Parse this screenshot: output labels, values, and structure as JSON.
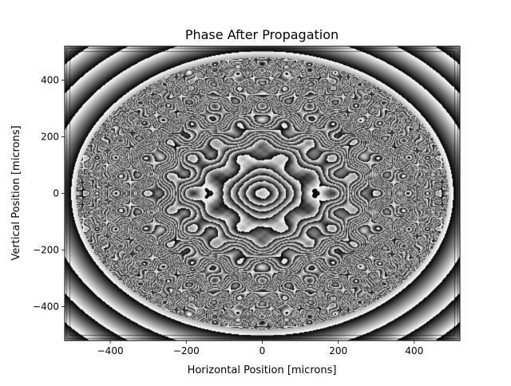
{
  "chart_data": {
    "type": "heatmap",
    "title": "Phase After Propagation",
    "xlabel": "Horizontal Position [microns]",
    "ylabel": "Vertical Position [microns]",
    "xlim": [
      -520,
      520
    ],
    "ylim": [
      -520,
      520
    ],
    "xticks": [
      -400,
      -200,
      0,
      200,
      400
    ],
    "xtick_labels": [
      "−400",
      "−200",
      "0",
      "200",
      "400"
    ],
    "yticks": [
      -400,
      -200,
      0,
      200,
      400
    ],
    "ytick_labels": [
      "−400",
      "−200",
      "0",
      "200",
      "400"
    ],
    "colormap": "gray",
    "value_range": "wrapped phase (-π to π)",
    "grid": false,
    "legend": "none",
    "features": {
      "aperture": {
        "shape": "ellipse",
        "center": [
          0,
          0
        ],
        "x_semi_axis": 490,
        "y_semi_axis": 480
      },
      "ring_centers": [
        {
          "x": 0,
          "y": 0,
          "strength": "strong"
        },
        {
          "x": 0,
          "y": 325,
          "strength": "strong"
        },
        {
          "x": 0,
          "y": -325,
          "strength": "strong"
        },
        {
          "x": -440,
          "y": 0,
          "strength": "strong"
        },
        {
          "x": 440,
          "y": 0,
          "strength": "strong"
        },
        {
          "x": -220,
          "y": 160,
          "strength": "medium"
        },
        {
          "x": 220,
          "y": 160,
          "strength": "medium"
        },
        {
          "x": -220,
          "y": -160,
          "strength": "medium"
        },
        {
          "x": 220,
          "y": -160,
          "strength": "medium"
        },
        {
          "x": -220,
          "y": 0,
          "strength": "weak"
        },
        {
          "x": 220,
          "y": 0,
          "strength": "weak"
        },
        {
          "x": 0,
          "y": 160,
          "strength": "weak"
        },
        {
          "x": 0,
          "y": -160,
          "strength": "weak"
        },
        {
          "x": -220,
          "y": 325,
          "strength": "weak"
        },
        {
          "x": 220,
          "y": 325,
          "strength": "weak"
        },
        {
          "x": -220,
          "y": -325,
          "strength": "weak"
        },
        {
          "x": 220,
          "y": -325,
          "strength": "weak"
        },
        {
          "x": -440,
          "y": 160,
          "strength": "weak"
        },
        {
          "x": 440,
          "y": 160,
          "strength": "weak"
        },
        {
          "x": -440,
          "y": -160,
          "strength": "weak"
        },
        {
          "x": 440,
          "y": -160,
          "strength": "weak"
        }
      ]
    }
  }
}
